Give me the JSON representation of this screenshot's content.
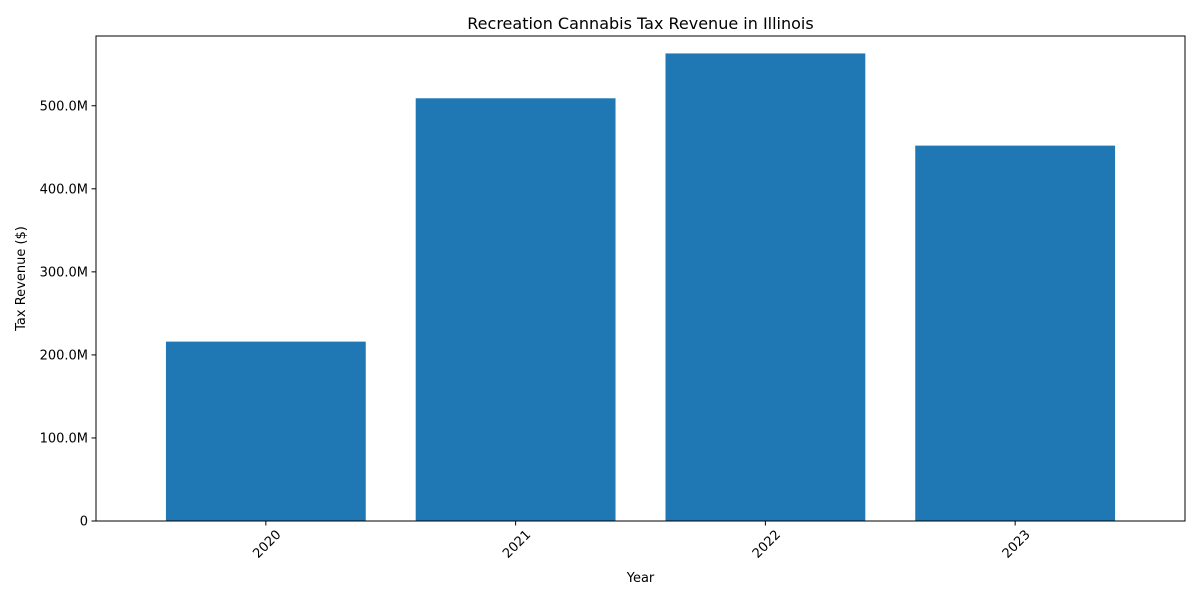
{
  "chart_data": {
    "type": "bar",
    "title": "Recreation Cannabis Tax Revenue in Illinois",
    "xlabel": "Year",
    "ylabel": "Tax Revenue ($)",
    "categories": [
      "2020",
      "2021",
      "2022",
      "2023"
    ],
    "values": [
      216000000,
      509000000,
      563000000,
      452000000
    ],
    "ylim": [
      0,
      584000000
    ],
    "yticks": [
      0,
      100000000,
      200000000,
      300000000,
      400000000,
      500000000
    ],
    "ytick_labels": [
      "0",
      "100.0M",
      "200.0M",
      "300.0M",
      "400.0M",
      "500.0M"
    ],
    "bar_color": "#1f77b4",
    "grid": false,
    "legend": "none"
  }
}
